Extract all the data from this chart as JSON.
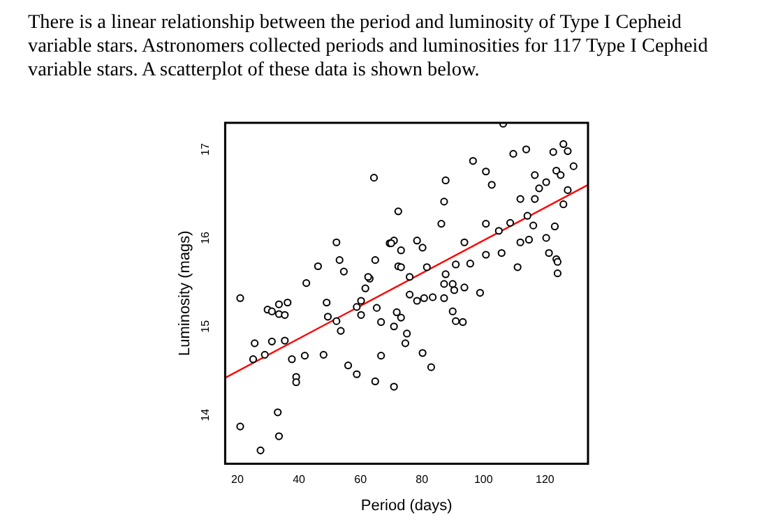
{
  "chart_data": {
    "type": "scatter",
    "title": "There is a linear relationship between the period and luminosity of Type I Cepheid variable stars. Astronomers collected periods and luminosities for 117 Type I Cepheid variable stars. A scatterplot of these data is shown below.",
    "xlabel": "Period (days)",
    "ylabel": "Luminosity (mags)",
    "xlim": [
      16,
      134
    ],
    "ylim": [
      13.45,
      17.3
    ],
    "xticks": [
      20,
      40,
      60,
      80,
      100,
      120
    ],
    "yticks": [
      14,
      15,
      16,
      17
    ],
    "grid": false,
    "legend": false,
    "series": [
      {
        "marker": "circle",
        "color": "#000000",
        "x": [
          20.9,
          20.9,
          27.5,
          25.6,
          25.1,
          28.9,
          31.2,
          29.8,
          31.2,
          33.5,
          33.5,
          35.4,
          36.3,
          35.4,
          33.1,
          33.5,
          37.7,
          39.1,
          39.1,
          41.9,
          42.4,
          48.0,
          49.0,
          49.4,
          52.2,
          53.6,
          56.0,
          58.8,
          60.2,
          60.2,
          58.8,
          61.6,
          63.0,
          64.8,
          65.3,
          66.7,
          66.7,
          70.9,
          70.9,
          71.8,
          64.4,
          72.3,
          52.2,
          46.2,
          53.2,
          54.6,
          62.5,
          64.8,
          69.5,
          70.9,
          70.0,
          72.3,
          106.4,
          109.7,
          113.9,
          126.0,
          122.7,
          127.4,
          96.6,
          100.8,
          87.7,
          102.7,
          116.7,
          123.7,
          125.1,
          129.3,
          120.4,
          118.1,
          127.4,
          112.0,
          116.7,
          126.0,
          87.2,
          114.3,
          108.7,
          86.3,
          100.8,
          105.0,
          116.2,
          123.2,
          78.4,
          80.2,
          93.8,
          114.8,
          112.0,
          120.4,
          73.2,
          73.2,
          100.8,
          105.9,
          121.3,
          123.7,
          124.1,
          111.1,
          124.1,
          81.6,
          91.0,
          95.7,
          76.0,
          87.7,
          76.0,
          78.4,
          80.7,
          83.5,
          87.2,
          87.2,
          90.0,
          90.5,
          93.8,
          98.9,
          90.0,
          91.0,
          93.3,
          73.2,
          75.1,
          74.6,
          80.2,
          83.0
        ],
        "values": [
          15.32,
          13.87,
          13.6,
          14.81,
          14.63,
          14.68,
          14.83,
          15.19,
          15.17,
          15.25,
          15.14,
          15.13,
          15.27,
          14.84,
          14.03,
          13.76,
          14.63,
          14.43,
          14.37,
          14.67,
          15.49,
          14.68,
          15.27,
          15.11,
          15.06,
          14.95,
          14.56,
          14.46,
          15.29,
          15.13,
          15.22,
          15.43,
          15.54,
          14.38,
          15.21,
          15.05,
          14.67,
          14.32,
          15.0,
          15.16,
          16.68,
          16.3,
          15.95,
          15.68,
          15.75,
          15.62,
          15.56,
          15.75,
          15.94,
          15.97,
          15.94,
          15.68,
          17.29,
          16.95,
          17.0,
          17.06,
          16.97,
          16.98,
          16.87,
          16.75,
          16.65,
          16.6,
          16.71,
          16.76,
          16.71,
          16.81,
          16.63,
          16.56,
          16.54,
          16.44,
          16.44,
          16.38,
          16.41,
          16.25,
          16.17,
          16.16,
          16.16,
          16.08,
          16.14,
          16.13,
          15.97,
          15.89,
          15.95,
          15.98,
          15.95,
          16.0,
          15.86,
          15.67,
          15.81,
          15.83,
          15.83,
          15.76,
          15.73,
          15.67,
          15.6,
          15.67,
          15.7,
          15.71,
          15.56,
          15.59,
          15.36,
          15.29,
          15.32,
          15.33,
          15.32,
          15.48,
          15.48,
          15.41,
          15.44,
          15.38,
          15.17,
          15.06,
          15.05,
          15.1,
          14.92,
          14.81,
          14.7,
          14.54
        ]
      },
      {
        "type": "line",
        "marker": "none",
        "color": "#ff0000",
        "line_style": "solid",
        "x": [
          16,
          134
        ],
        "values": [
          14.42,
          16.6
        ]
      }
    ]
  }
}
